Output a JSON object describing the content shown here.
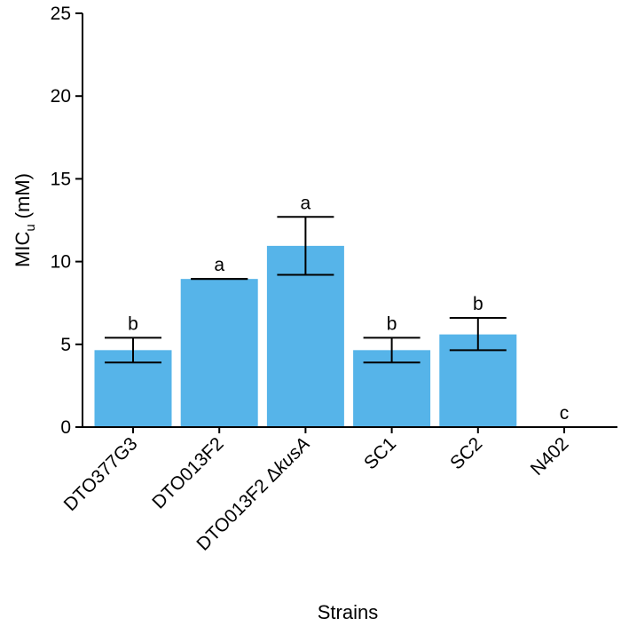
{
  "chart_data": {
    "type": "bar",
    "xlabel": "Strains",
    "ylabel_main": "MIC",
    "ylabel_sub": "u",
    "ylabel_unit": "(mM)",
    "ylim": [
      0,
      25
    ],
    "yticks": [
      0,
      5,
      10,
      15,
      20,
      25
    ],
    "grid": false,
    "categories": [
      {
        "label": "DTO377G3",
        "italic": ""
      },
      {
        "label": "DTO013F2",
        "italic": ""
      },
      {
        "label": "DTO013F2 Δ",
        "italic": "kusA"
      },
      {
        "label": "SC1",
        "italic": ""
      },
      {
        "label": "SC2",
        "italic": ""
      },
      {
        "label": "N402",
        "italic": ""
      }
    ],
    "values": [
      4.65,
      8.95,
      10.95,
      4.65,
      5.6,
      0
    ],
    "error_low": [
      3.9,
      8.95,
      9.2,
      3.9,
      4.65,
      null
    ],
    "error_high": [
      5.4,
      8.95,
      12.7,
      5.4,
      6.6,
      null
    ],
    "significance": [
      "b",
      "a",
      "a",
      "b",
      "b",
      "c"
    ],
    "bar_color": "#56b4e9"
  }
}
